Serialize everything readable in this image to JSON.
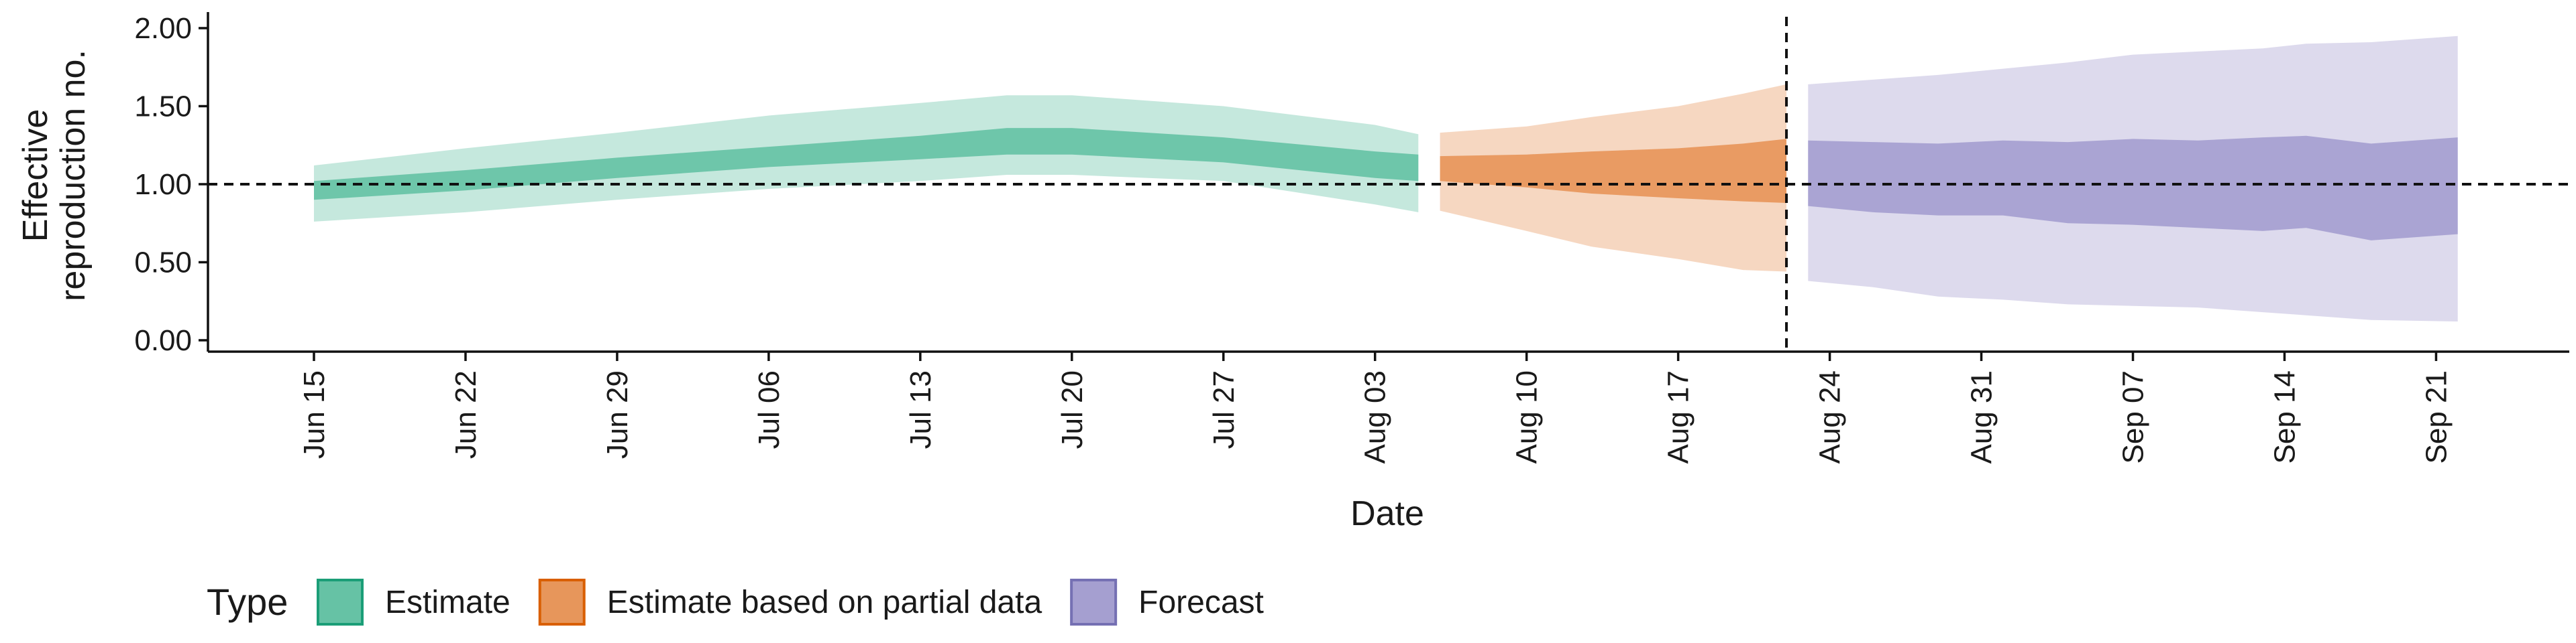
{
  "chart_data": {
    "type": "area",
    "xlabel": "Date",
    "ylabel_lines": [
      "Effective",
      "reproduction no."
    ],
    "ylim": [
      0,
      2
    ],
    "y_ticks": [
      0,
      0.5,
      1,
      1.5,
      2
    ],
    "y_tick_labels": [
      "0.00",
      "0.50",
      "1.00",
      "1.50",
      "2.00"
    ],
    "x_range": [
      "2020-06-11",
      "2020-09-25"
    ],
    "x_ticks": [
      "2020-06-15",
      "2020-06-22",
      "2020-06-29",
      "2020-07-06",
      "2020-07-13",
      "2020-07-20",
      "2020-07-27",
      "2020-08-03",
      "2020-08-10",
      "2020-08-17",
      "2020-08-24",
      "2020-08-31",
      "2020-09-07",
      "2020-09-14",
      "2020-09-21"
    ],
    "x_tick_labels": [
      "Jun 15",
      "Jun 22",
      "Jun 29",
      "Jul 06",
      "Jul 13",
      "Jul 20",
      "Jul 27",
      "Aug 03",
      "Aug 10",
      "Aug 17",
      "Aug 24",
      "Aug 31",
      "Sep 07",
      "Sep 14",
      "Sep 21"
    ],
    "hline": 1.0,
    "vline": "2020-08-22",
    "grid": false,
    "legend": {
      "title": "Type",
      "position": "bottom-left",
      "entries": [
        "Estimate",
        "Estimate based on partial data",
        "Forecast"
      ]
    },
    "series": [
      {
        "name": "Estimate",
        "fill": "#66c2a5",
        "stroke": "#1b9e77",
        "x": [
          "2020-06-15",
          "2020-06-22",
          "2020-06-29",
          "2020-07-06",
          "2020-07-13",
          "2020-07-17",
          "2020-07-20",
          "2020-07-27",
          "2020-08-03",
          "2020-08-05"
        ],
        "lower90": [
          0.76,
          0.82,
          0.9,
          0.97,
          1.02,
          1.06,
          1.06,
          1.02,
          0.87,
          0.82
        ],
        "lower50": [
          0.9,
          0.96,
          1.04,
          1.11,
          1.16,
          1.19,
          1.19,
          1.14,
          1.04,
          1.02
        ],
        "upper50": [
          1.02,
          1.09,
          1.17,
          1.24,
          1.31,
          1.36,
          1.36,
          1.3,
          1.21,
          1.19
        ],
        "upper90": [
          1.12,
          1.23,
          1.33,
          1.44,
          1.52,
          1.57,
          1.57,
          1.5,
          1.38,
          1.32
        ]
      },
      {
        "name": "Estimate based on partial data",
        "fill": "#e7965b",
        "stroke": "#d95f02",
        "x": [
          "2020-08-06",
          "2020-08-10",
          "2020-08-13",
          "2020-08-17",
          "2020-08-20",
          "2020-08-22"
        ],
        "lower90": [
          0.83,
          0.7,
          0.6,
          0.52,
          0.45,
          0.44
        ],
        "lower50": [
          1.02,
          0.98,
          0.94,
          0.91,
          0.89,
          0.88
        ],
        "upper50": [
          1.18,
          1.19,
          1.21,
          1.23,
          1.26,
          1.29
        ],
        "upper90": [
          1.33,
          1.37,
          1.43,
          1.5,
          1.58,
          1.64
        ]
      },
      {
        "name": "Forecast",
        "fill": "#a59fd0",
        "stroke": "#7570b3",
        "x": [
          "2020-08-23",
          "2020-08-26",
          "2020-08-29",
          "2020-09-01",
          "2020-09-04",
          "2020-09-07",
          "2020-09-10",
          "2020-09-13",
          "2020-09-15",
          "2020-09-18",
          "2020-09-22"
        ],
        "lower90": [
          0.38,
          0.34,
          0.28,
          0.26,
          0.23,
          0.22,
          0.21,
          0.18,
          0.16,
          0.13,
          0.12
        ],
        "lower50": [
          0.86,
          0.82,
          0.8,
          0.8,
          0.75,
          0.74,
          0.72,
          0.7,
          0.72,
          0.64,
          0.68
        ],
        "upper50": [
          1.28,
          1.27,
          1.26,
          1.28,
          1.27,
          1.29,
          1.28,
          1.3,
          1.31,
          1.26,
          1.3
        ],
        "upper90": [
          1.64,
          1.67,
          1.7,
          1.74,
          1.78,
          1.83,
          1.85,
          1.87,
          1.9,
          1.91,
          1.95
        ]
      }
    ]
  }
}
